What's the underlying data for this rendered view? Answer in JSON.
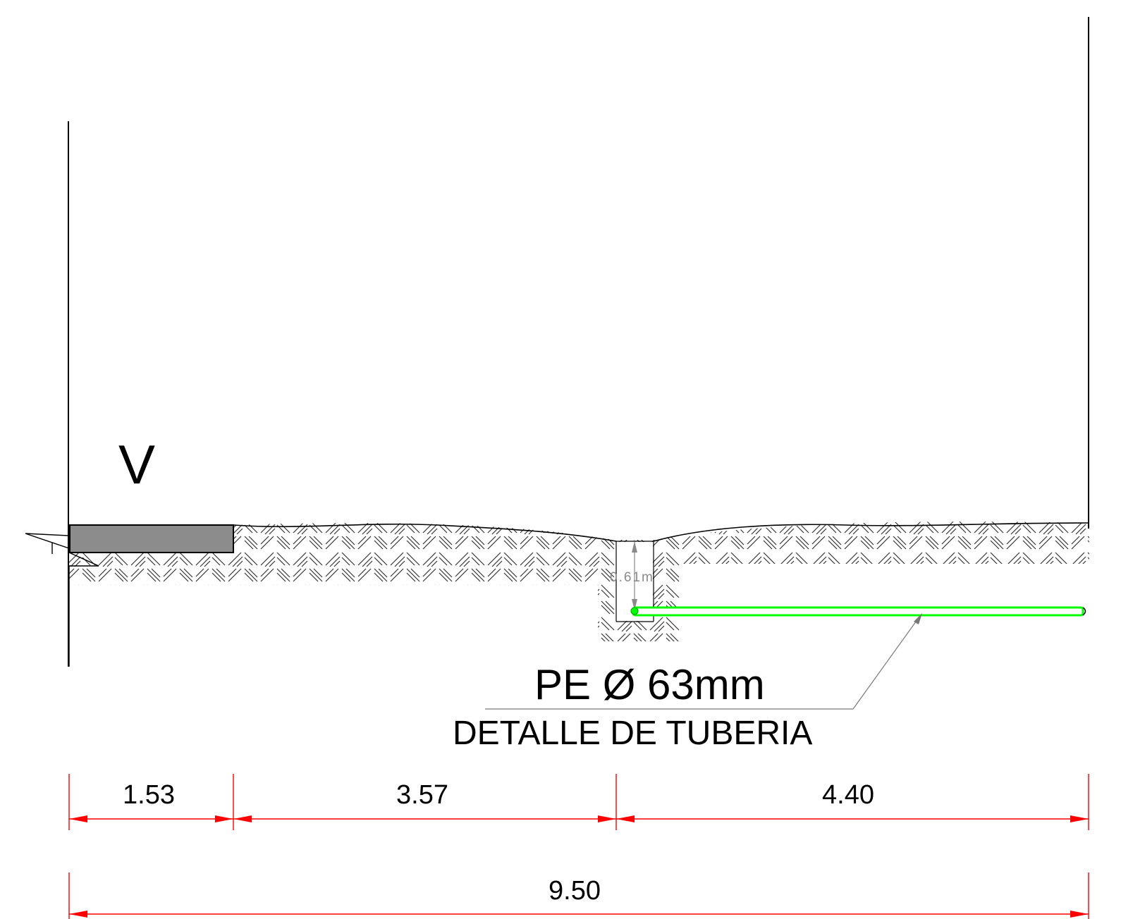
{
  "labels": {
    "wall_mark": "V",
    "pipe_spec": "PE Ø 63mm",
    "detail_title": "DETALLE DE TUBERIA",
    "trench_depth": "0.61m"
  },
  "dimensions": {
    "segments": [
      "1.53",
      "3.57",
      "4.40"
    ],
    "total": "9.50"
  },
  "colors": {
    "line": "#000000",
    "dimension": "#ff0000",
    "pipe": "#00ff00",
    "slab": "#8c8c8c",
    "hatch": "#333333",
    "depth_text": "#8a8a8a"
  }
}
